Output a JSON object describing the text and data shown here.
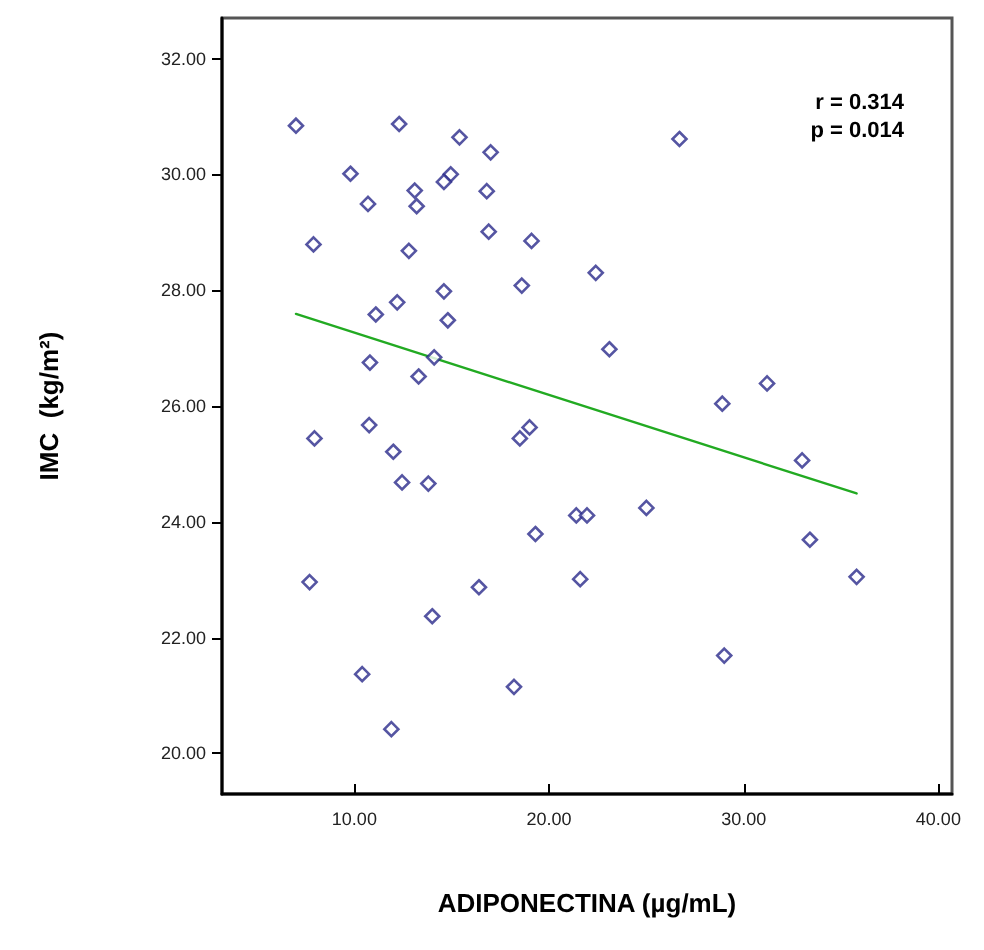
{
  "chart_data": {
    "type": "scatter",
    "xlabel": "ADIPONECTINA (µg/mL)",
    "ylabel": "IMC  (kg/m²)",
    "annotations": [
      "r = 0.314",
      "p = 0.014"
    ],
    "xlim": [
      3.2,
      40.7
    ],
    "xticks": [
      {
        "value": 10,
        "label": "10.00"
      },
      {
        "value": 20,
        "label": "20.00"
      },
      {
        "value": 30,
        "label": "30.00"
      },
      {
        "value": 40,
        "label": "40.00"
      }
    ],
    "ylim": [
      19.3,
      32.7
    ],
    "yticks": [
      {
        "value": 20,
        "label": "20.00"
      },
      {
        "value": 22,
        "label": "22.00"
      },
      {
        "value": 24,
        "label": "24.00"
      },
      {
        "value": 26,
        "label": "26.00"
      },
      {
        "value": 28,
        "label": "28.00"
      },
      {
        "value": 30,
        "label": "30.00"
      },
      {
        "value": 32,
        "label": "32.00"
      }
    ],
    "grid": false,
    "marker": "diamond",
    "series": [
      {
        "color": "#2b2b8b",
        "x": [
          7.0,
          12.3,
          15.4,
          17.0,
          9.8,
          14.95,
          14.6,
          13.1,
          16.8,
          10.7,
          13.2,
          7.9,
          16.9,
          19.1,
          12.8,
          14.6,
          18.6,
          12.2,
          11.1,
          14.8,
          10.8,
          14.1,
          13.3,
          26.7,
          22.4,
          23.1,
          31.2,
          28.9,
          33.0,
          21.4,
          21.95,
          25.0,
          33.4,
          21.6,
          35.8,
          29.0,
          7.95,
          10.76,
          12.0,
          12.45,
          13.8,
          18.5,
          19.0,
          19.3,
          7.7,
          16.4,
          14.0,
          10.4,
          18.2,
          11.9
        ],
        "values": [
          30.84,
          30.87,
          30.64,
          30.38,
          30.01,
          30.0,
          29.87,
          29.72,
          29.71,
          29.49,
          29.45,
          28.79,
          29.01,
          28.85,
          28.68,
          27.98,
          28.08,
          27.79,
          27.58,
          27.48,
          26.75,
          26.84,
          26.51,
          30.61,
          28.3,
          26.98,
          26.39,
          26.04,
          25.06,
          24.11,
          24.11,
          24.24,
          23.69,
          23.01,
          23.05,
          21.69,
          25.44,
          25.67,
          25.21,
          24.68,
          24.66,
          25.44,
          25.63,
          23.79,
          22.96,
          22.87,
          22.37,
          21.37,
          21.15,
          20.42
        ]
      },
      {
        "type": "line",
        "color": "#22aa22",
        "marker": "none",
        "line_style": "solid",
        "x": [
          7.0,
          35.8
        ],
        "values": [
          27.59,
          24.49
        ]
      }
    ]
  }
}
